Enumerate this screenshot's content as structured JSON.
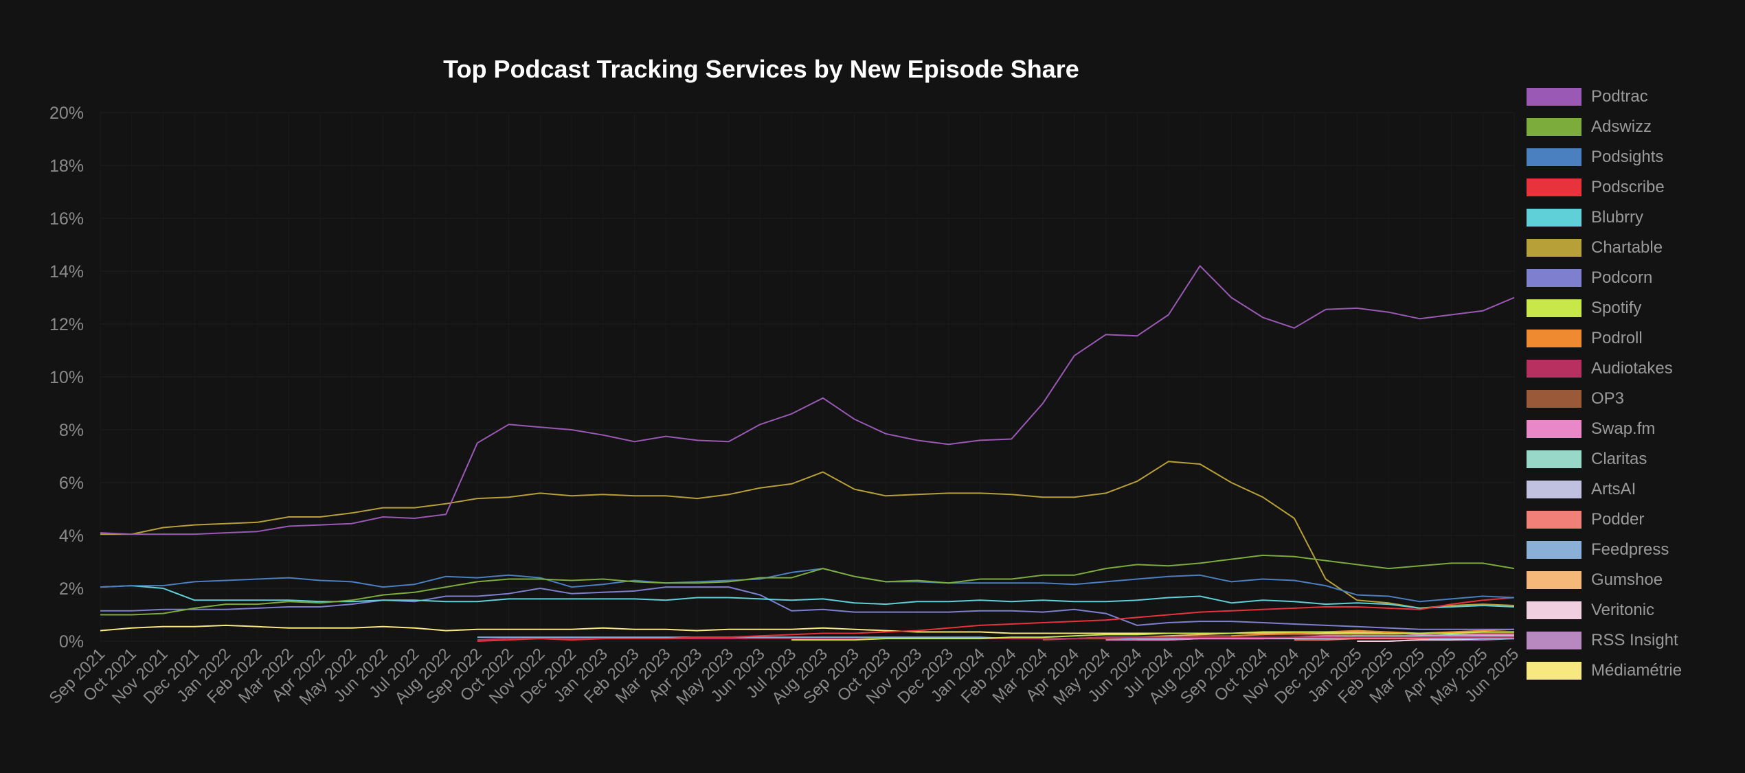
{
  "chart_data": {
    "type": "line",
    "title": "Top Podcast Tracking Services by New Episode Share",
    "xlabel": "",
    "ylabel": "",
    "ylim": [
      0,
      20
    ],
    "y_ticks": [
      "0%",
      "2%",
      "4%",
      "6%",
      "8%",
      "10%",
      "12%",
      "14%",
      "16%",
      "18%",
      "20%"
    ],
    "x": [
      "Sep 2021",
      "Oct 2021",
      "Nov 2021",
      "Dec 2021",
      "Jan 2022",
      "Feb 2022",
      "Mar 2022",
      "Apr 2022",
      "May 2022",
      "Jun 2022",
      "Jul 2022",
      "Aug 2022",
      "Sep 2022",
      "Oct 2022",
      "Nov 2022",
      "Dec 2022",
      "Jan 2023",
      "Feb 2023",
      "Mar 2023",
      "Apr 2023",
      "May 2023",
      "Jun 2023",
      "Jul 2023",
      "Aug 2023",
      "Sep 2023",
      "Oct 2023",
      "Nov 2023",
      "Dec 2023",
      "Jan 2024",
      "Feb 2024",
      "Mar 2024",
      "Apr 2024",
      "May 2024",
      "Jun 2024",
      "Jul 2024",
      "Aug 2024",
      "Sep 2024",
      "Oct 2024",
      "Nov 2024",
      "Dec 2024",
      "Jan 2025",
      "Feb 2025",
      "Mar 2025",
      "Apr 2025",
      "May 2025",
      "Jun 2025"
    ],
    "grid": true,
    "legend_position": "right",
    "series": [
      {
        "name": "Podtrac",
        "color": "#9b59b6",
        "values": [
          4.1,
          4.05,
          4.05,
          4.05,
          4.1,
          4.15,
          4.35,
          4.4,
          4.45,
          4.7,
          4.65,
          4.8,
          7.5,
          8.2,
          8.1,
          8.0,
          7.8,
          7.55,
          7.75,
          7.6,
          7.55,
          8.2,
          8.6,
          9.2,
          8.4,
          7.85,
          7.6,
          7.45,
          7.6,
          7.65,
          9.0,
          10.8,
          11.6,
          11.55,
          12.35,
          14.2,
          13.0,
          12.25,
          11.85,
          12.55,
          12.6,
          12.45,
          12.2,
          12.35,
          12.5,
          13.0
        ]
      },
      {
        "name": "Adswizz",
        "color": "#7cac3c",
        "values": [
          1.0,
          1.0,
          1.05,
          1.25,
          1.4,
          1.4,
          1.5,
          1.45,
          1.55,
          1.75,
          1.85,
          2.05,
          2.25,
          2.35,
          2.35,
          2.3,
          2.35,
          2.25,
          2.2,
          2.2,
          2.25,
          2.4,
          2.4,
          2.75,
          2.45,
          2.25,
          2.3,
          2.2,
          2.35,
          2.35,
          2.5,
          2.5,
          2.75,
          2.9,
          2.85,
          2.95,
          3.1,
          3.25,
          3.2,
          3.05,
          2.9,
          2.75,
          2.85,
          2.95,
          2.95,
          2.75
        ]
      },
      {
        "name": "Podsights",
        "color": "#4a7fc0",
        "values": [
          2.05,
          2.1,
          2.1,
          2.25,
          2.3,
          2.35,
          2.4,
          2.3,
          2.25,
          2.05,
          2.15,
          2.45,
          2.4,
          2.5,
          2.4,
          2.05,
          2.15,
          2.3,
          2.2,
          2.25,
          2.3,
          2.35,
          2.6,
          2.75,
          2.45,
          2.25,
          2.25,
          2.2,
          2.2,
          2.2,
          2.2,
          2.15,
          2.25,
          2.35,
          2.45,
          2.5,
          2.25,
          2.35,
          2.3,
          2.1,
          1.75,
          1.7,
          1.5,
          1.6,
          1.7,
          1.65
        ]
      },
      {
        "name": "Podscribe",
        "color": "#e8323c",
        "values": [
          null,
          null,
          null,
          null,
          null,
          null,
          null,
          null,
          null,
          null,
          null,
          null,
          0.0,
          0.05,
          0.1,
          0.05,
          0.1,
          0.1,
          0.1,
          0.15,
          0.15,
          0.2,
          0.25,
          0.3,
          0.3,
          0.35,
          0.4,
          0.5,
          0.6,
          0.65,
          0.7,
          0.75,
          0.8,
          0.9,
          1.0,
          1.1,
          1.15,
          1.2,
          1.25,
          1.3,
          1.3,
          1.25,
          1.2,
          1.4,
          1.55,
          1.65
        ]
      },
      {
        "name": "Blubrry",
        "color": "#5fd0d8",
        "values": [
          2.05,
          2.1,
          2.0,
          1.55,
          1.55,
          1.55,
          1.55,
          1.5,
          1.5,
          1.55,
          1.55,
          1.5,
          1.5,
          1.6,
          1.6,
          1.6,
          1.6,
          1.6,
          1.55,
          1.65,
          1.65,
          1.6,
          1.55,
          1.6,
          1.45,
          1.4,
          1.5,
          1.5,
          1.55,
          1.5,
          1.55,
          1.5,
          1.5,
          1.55,
          1.65,
          1.7,
          1.45,
          1.55,
          1.5,
          1.4,
          1.45,
          1.4,
          1.25,
          1.3,
          1.35,
          1.3
        ]
      },
      {
        "name": "Chartable",
        "color": "#b8a038",
        "values": [
          4.05,
          4.05,
          4.3,
          4.4,
          4.45,
          4.5,
          4.7,
          4.7,
          4.85,
          5.05,
          5.05,
          5.2,
          5.4,
          5.45,
          5.6,
          5.5,
          5.55,
          5.5,
          5.5,
          5.4,
          5.55,
          5.8,
          5.95,
          6.4,
          5.75,
          5.5,
          5.55,
          5.6,
          5.6,
          5.55,
          5.45,
          5.45,
          5.6,
          6.05,
          6.8,
          6.7,
          6.0,
          5.45,
          4.65,
          2.35,
          1.55,
          1.45,
          1.25,
          1.35,
          1.4,
          1.35
        ]
      },
      {
        "name": "Podcorn",
        "color": "#7f7fd0",
        "values": [
          1.15,
          1.15,
          1.2,
          1.2,
          1.2,
          1.25,
          1.3,
          1.3,
          1.4,
          1.55,
          1.5,
          1.7,
          1.7,
          1.8,
          2.0,
          1.8,
          1.85,
          1.9,
          2.05,
          2.05,
          2.05,
          1.75,
          1.15,
          1.2,
          1.1,
          1.1,
          1.1,
          1.1,
          1.15,
          1.15,
          1.1,
          1.2,
          1.05,
          0.6,
          0.7,
          0.75,
          0.75,
          0.7,
          0.65,
          0.6,
          0.55,
          0.5,
          0.45,
          0.45,
          0.45,
          0.45
        ]
      },
      {
        "name": "Spotify",
        "color": "#c8e84a",
        "values": [
          null,
          null,
          null,
          null,
          null,
          null,
          null,
          null,
          null,
          null,
          null,
          null,
          null,
          null,
          null,
          null,
          null,
          null,
          null,
          null,
          null,
          null,
          0.05,
          0.05,
          0.05,
          0.1,
          0.1,
          0.1,
          0.1,
          0.15,
          0.15,
          0.2,
          0.25,
          0.25,
          0.3,
          0.3,
          0.3,
          0.35,
          0.35,
          0.35,
          0.3,
          0.3,
          0.3,
          0.3,
          0.35,
          0.35
        ]
      },
      {
        "name": "Podroll",
        "color": "#f08a30",
        "values": [
          null,
          null,
          null,
          null,
          null,
          null,
          null,
          null,
          null,
          null,
          null,
          null,
          null,
          null,
          null,
          null,
          null,
          null,
          null,
          null,
          null,
          null,
          null,
          null,
          null,
          null,
          null,
          null,
          null,
          null,
          null,
          null,
          null,
          null,
          null,
          null,
          0.2,
          0.25,
          0.3,
          0.35,
          0.4,
          0.35,
          0.3,
          0.35,
          0.4,
          0.45
        ]
      },
      {
        "name": "Audiotakes",
        "color": "#b83060",
        "values": [
          null,
          null,
          null,
          null,
          null,
          null,
          null,
          null,
          null,
          null,
          null,
          null,
          0.05,
          0.1,
          0.1,
          0.1,
          0.1,
          0.1,
          0.1,
          0.1,
          0.1,
          0.1,
          0.1,
          0.1,
          0.1,
          0.1,
          0.1,
          0.1,
          0.1,
          0.1,
          0.1,
          0.1,
          0.15,
          0.15,
          0.15,
          0.15,
          0.15,
          0.15,
          0.15,
          0.15,
          0.15,
          0.15,
          0.15,
          0.15,
          0.15,
          0.15
        ]
      },
      {
        "name": "OP3",
        "color": "#9a5a3a",
        "values": [
          null,
          null,
          null,
          null,
          null,
          null,
          null,
          null,
          null,
          null,
          null,
          null,
          null,
          null,
          null,
          null,
          null,
          null,
          null,
          null,
          null,
          null,
          null,
          null,
          null,
          null,
          null,
          null,
          null,
          null,
          0.05,
          0.1,
          0.1,
          0.15,
          0.15,
          0.2,
          0.2,
          0.25,
          0.25,
          0.25,
          0.25,
          0.25,
          0.3,
          0.3,
          0.3,
          0.3
        ]
      },
      {
        "name": "Swap.fm",
        "color": "#e888c8",
        "values": [
          null,
          null,
          null,
          null,
          null,
          null,
          null,
          null,
          null,
          null,
          null,
          null,
          null,
          null,
          null,
          null,
          null,
          null,
          null,
          null,
          null,
          null,
          null,
          null,
          null,
          null,
          null,
          null,
          null,
          null,
          null,
          null,
          0.05,
          0.05,
          0.05,
          0.1,
          0.1,
          0.1,
          0.15,
          0.2,
          0.25,
          0.3,
          0.25,
          0.2,
          0.25,
          0.25
        ]
      },
      {
        "name": "Claritas",
        "color": "#98d8c8",
        "values": [
          null,
          null,
          null,
          null,
          null,
          null,
          null,
          null,
          null,
          null,
          null,
          null,
          null,
          null,
          null,
          null,
          null,
          null,
          null,
          null,
          null,
          null,
          null,
          null,
          null,
          null,
          null,
          null,
          null,
          null,
          null,
          null,
          null,
          null,
          null,
          null,
          0.1,
          0.1,
          0.15,
          0.15,
          0.2,
          0.2,
          0.2,
          0.25,
          0.25,
          0.25
        ]
      },
      {
        "name": "ArtsAI",
        "color": "#c0c0e0",
        "values": [
          null,
          null,
          null,
          null,
          null,
          null,
          null,
          null,
          null,
          null,
          null,
          null,
          null,
          null,
          null,
          null,
          null,
          null,
          null,
          null,
          null,
          null,
          null,
          null,
          null,
          null,
          null,
          null,
          null,
          null,
          null,
          null,
          null,
          0.05,
          0.05,
          0.1,
          0.1,
          0.1,
          0.1,
          0.15,
          0.15,
          0.15,
          0.2,
          0.2,
          0.2,
          0.2
        ]
      },
      {
        "name": "Podder",
        "color": "#f08078",
        "values": [
          null,
          null,
          null,
          null,
          null,
          null,
          null,
          null,
          null,
          null,
          null,
          null,
          null,
          null,
          null,
          null,
          null,
          null,
          null,
          null,
          null,
          null,
          null,
          null,
          null,
          null,
          null,
          null,
          null,
          null,
          null,
          null,
          null,
          null,
          null,
          null,
          null,
          null,
          0.05,
          0.05,
          0.1,
          0.1,
          0.1,
          0.15,
          0.15,
          0.15
        ]
      },
      {
        "name": "Feedpress",
        "color": "#8ab0d8",
        "values": [
          null,
          null,
          null,
          null,
          null,
          null,
          null,
          null,
          null,
          null,
          null,
          null,
          0.15,
          0.15,
          0.15,
          0.15,
          0.15,
          0.15,
          0.15,
          0.15,
          0.15,
          0.15,
          0.15,
          0.15,
          0.15,
          0.15,
          0.15,
          0.15,
          0.15,
          0.1,
          0.1,
          0.1,
          0.1,
          0.1,
          0.1,
          0.1,
          0.1,
          0.1,
          0.1,
          0.1,
          0.1,
          0.1,
          0.1,
          0.1,
          0.1,
          0.1
        ]
      },
      {
        "name": "Gumshoe",
        "color": "#f5b878",
        "values": [
          null,
          null,
          null,
          null,
          null,
          null,
          null,
          null,
          null,
          null,
          null,
          null,
          null,
          null,
          null,
          null,
          null,
          null,
          null,
          null,
          null,
          null,
          null,
          null,
          null,
          null,
          null,
          null,
          null,
          null,
          null,
          0.1,
          0.15,
          0.15,
          0.2,
          0.25,
          0.3,
          0.3,
          0.35,
          0.35,
          0.35,
          0.3,
          0.3,
          0.3,
          0.35,
          0.35
        ]
      },
      {
        "name": "Veritonic",
        "color": "#f0d0e0",
        "values": [
          null,
          null,
          null,
          null,
          null,
          null,
          null,
          null,
          null,
          null,
          null,
          null,
          null,
          null,
          null,
          null,
          null,
          null,
          null,
          null,
          null,
          null,
          null,
          null,
          null,
          null,
          null,
          null,
          null,
          null,
          null,
          null,
          null,
          null,
          null,
          null,
          null,
          null,
          null,
          null,
          0.0,
          0.0,
          0.05,
          0.05,
          0.1,
          0.1
        ]
      },
      {
        "name": "RSS Insight",
        "color": "#b888c0",
        "values": [
          null,
          null,
          null,
          null,
          null,
          null,
          null,
          null,
          null,
          null,
          null,
          null,
          null,
          null,
          null,
          null,
          null,
          null,
          null,
          null,
          null,
          null,
          null,
          null,
          null,
          null,
          null,
          null,
          null,
          null,
          null,
          null,
          null,
          null,
          null,
          null,
          null,
          null,
          null,
          null,
          null,
          0.0,
          0.05,
          0.05,
          0.05,
          0.1
        ]
      },
      {
        "name": "Médiamétrie",
        "color": "#f8e880",
        "values": [
          0.4,
          0.5,
          0.55,
          0.55,
          0.6,
          0.55,
          0.5,
          0.5,
          0.5,
          0.55,
          0.5,
          0.4,
          0.45,
          0.45,
          0.45,
          0.45,
          0.5,
          0.45,
          0.45,
          0.4,
          0.45,
          0.45,
          0.45,
          0.5,
          0.45,
          0.4,
          0.35,
          0.35,
          0.35,
          0.3,
          0.3,
          0.3,
          0.3,
          0.3,
          0.3,
          0.3,
          0.3,
          0.3,
          0.3,
          0.3,
          0.3,
          0.3,
          0.3,
          0.3,
          0.3,
          0.3
        ]
      }
    ]
  }
}
